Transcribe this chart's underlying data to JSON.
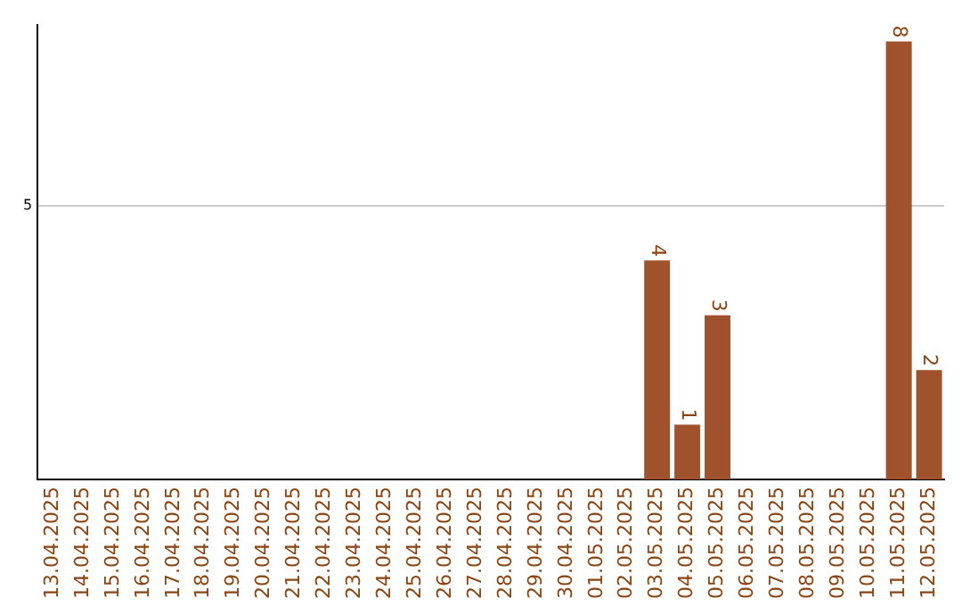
{
  "chart_data": {
    "type": "bar",
    "categories": [
      "13.04.2025",
      "14.04.2025",
      "15.04.2025",
      "16.04.2025",
      "17.04.2025",
      "18.04.2025",
      "19.04.2025",
      "20.04.2025",
      "21.04.2025",
      "22.04.2025",
      "23.04.2025",
      "24.04.2025",
      "25.04.2025",
      "26.04.2025",
      "27.04.2025",
      "28.04.2025",
      "29.04.2025",
      "30.04.2025",
      "01.05.2025",
      "02.05.2025",
      "03.05.2025",
      "04.05.2025",
      "05.05.2025",
      "06.05.2025",
      "07.05.2025",
      "08.05.2025",
      "09.05.2025",
      "10.05.2025",
      "11.05.2025",
      "12.05.2025"
    ],
    "values": [
      null,
      null,
      null,
      null,
      null,
      null,
      null,
      null,
      null,
      null,
      null,
      null,
      null,
      null,
      null,
      null,
      null,
      null,
      null,
      null,
      4,
      1,
      3,
      null,
      null,
      null,
      null,
      null,
      8,
      2
    ],
    "data_labels": true,
    "color": "#a0522d",
    "ylim": [
      0,
      8.3
    ],
    "yticks": [
      5
    ],
    "grid": "y",
    "legend": false
  }
}
